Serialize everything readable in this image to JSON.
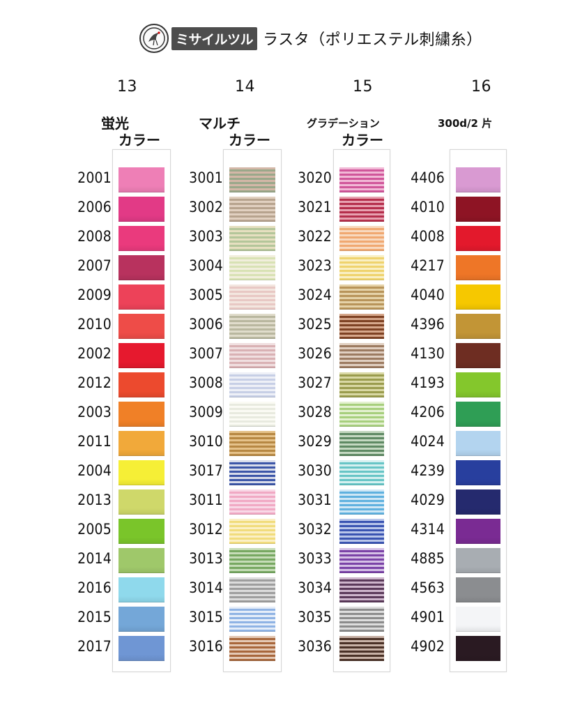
{
  "header": {
    "brand": "ミサイルツル",
    "title": "ラスタ（ポリエステル刺繍糸）",
    "logo_icon": "crane-emblem-icon"
  },
  "columns": [
    {
      "number": "13",
      "label_lines": [
        "蛍光",
        "カラー"
      ],
      "style": "solid",
      "items": [
        {
          "code": "2001",
          "color": "#ee7fb6"
        },
        {
          "code": "2006",
          "color": "#e23a86"
        },
        {
          "code": "2008",
          "color": "#ea3a7d"
        },
        {
          "code": "2007",
          "color": "#b8325e"
        },
        {
          "code": "2009",
          "color": "#ed4259"
        },
        {
          "code": "2010",
          "color": "#ee4c48"
        },
        {
          "code": "2002",
          "color": "#e6192e"
        },
        {
          "code": "2012",
          "color": "#ec4a2e"
        },
        {
          "code": "2003",
          "color": "#f08027"
        },
        {
          "code": "2011",
          "color": "#f1a93a"
        },
        {
          "code": "2004",
          "color": "#f6ef36"
        },
        {
          "code": "2013",
          "color": "#cfd86a"
        },
        {
          "code": "2005",
          "color": "#7ac52a"
        },
        {
          "code": "2014",
          "color": "#9fc86a"
        },
        {
          "code": "2016",
          "color": "#8fd9ec"
        },
        {
          "code": "2015",
          "color": "#74a7d8"
        },
        {
          "code": "2017",
          "color": "#6f96d4"
        }
      ]
    },
    {
      "number": "14",
      "label_lines": [
        "マルチ",
        "カラー"
      ],
      "style": "multi",
      "items": [
        {
          "code": "3001",
          "color": "#9aa88a",
          "color2": "#d3b7a7"
        },
        {
          "code": "3002",
          "color": "#b7a38e",
          "color2": "#e1d0c0"
        },
        {
          "code": "3003",
          "color": "#b4c69a",
          "color2": "#e6dfc0"
        },
        {
          "code": "3004",
          "color": "#d8e2b4",
          "color2": "#f1eedc"
        },
        {
          "code": "3005",
          "color": "#e8c8c4",
          "color2": "#f3e6df"
        },
        {
          "code": "3006",
          "color": "#b9b79f",
          "color2": "#e0dccb"
        },
        {
          "code": "3007",
          "color": "#d9b1b4",
          "color2": "#f0dfe0"
        },
        {
          "code": "3008",
          "color": "#c7cfe6",
          "color2": "#eef0f7"
        },
        {
          "code": "3009",
          "color": "#e8eadf",
          "color2": "#fbfbf4"
        },
        {
          "code": "3010",
          "color": "#b78843",
          "color2": "#e5c28a"
        },
        {
          "code": "3017",
          "color": "#3c56a8",
          "color2": "#d8dcea"
        },
        {
          "code": "3011",
          "color": "#f1a9c4",
          "color2": "#f8d8e6"
        },
        {
          "code": "3012",
          "color": "#f1dc7c",
          "color2": "#fbf0c6"
        },
        {
          "code": "3013",
          "color": "#77a862",
          "color2": "#c6dcb8"
        },
        {
          "code": "3014",
          "color": "#9e9e9e",
          "color2": "#dcdcdc"
        },
        {
          "code": "3015",
          "color": "#8fb3e4",
          "color2": "#e6eef9"
        },
        {
          "code": "3016",
          "color": "#a8673c",
          "color2": "#e4c9b5"
        }
      ]
    },
    {
      "number": "15",
      "label_lines": [
        "グラデーション",
        "カラー"
      ],
      "style": "multi",
      "items": [
        {
          "code": "3020",
          "color": "#d0569a",
          "color2": "#f1b8d6"
        },
        {
          "code": "3021",
          "color": "#b52e4c",
          "color2": "#e7a1b0"
        },
        {
          "code": "3022",
          "color": "#f0a871",
          "color2": "#f8d9bf"
        },
        {
          "code": "3023",
          "color": "#efd36e",
          "color2": "#f9efc4"
        },
        {
          "code": "3024",
          "color": "#b8945a",
          "color2": "#e5d2a8"
        },
        {
          "code": "3025",
          "color": "#7e4224",
          "color2": "#d6a78b"
        },
        {
          "code": "3026",
          "color": "#9c7b61",
          "color2": "#e0cfc1"
        },
        {
          "code": "3027",
          "color": "#9a9c4e",
          "color2": "#d9d8a4"
        },
        {
          "code": "3028",
          "color": "#a7cf7d",
          "color2": "#e4f1d1"
        },
        {
          "code": "3029",
          "color": "#5f8a64",
          "color2": "#c4d8c1"
        },
        {
          "code": "3030",
          "color": "#67c5c6",
          "color2": "#d5f0f0"
        },
        {
          "code": "3031",
          "color": "#5fb1df",
          "color2": "#cfe7f5"
        },
        {
          "code": "3032",
          "color": "#3a54b2",
          "color2": "#b9c6ea"
        },
        {
          "code": "3033",
          "color": "#7b43a7",
          "color2": "#d5c1e6"
        },
        {
          "code": "3034",
          "color": "#5b3a5a",
          "color2": "#cdb5cb"
        },
        {
          "code": "3035",
          "color": "#8c8c8c",
          "color2": "#dddddd"
        },
        {
          "code": "3036",
          "color": "#4a3126",
          "color2": "#c8b2a6"
        }
      ]
    },
    {
      "number": "16",
      "label_lines": [
        "300d/2 片"
      ],
      "style": "solid",
      "items": [
        {
          "code": "4406",
          "color": "#d99ad2"
        },
        {
          "code": "4010",
          "color": "#8e1424"
        },
        {
          "code": "4008",
          "color": "#e3192c"
        },
        {
          "code": "4217",
          "color": "#ee7627"
        },
        {
          "code": "4040",
          "color": "#f6c800"
        },
        {
          "code": "4396",
          "color": "#c29536"
        },
        {
          "code": "4130",
          "color": "#6e2d22"
        },
        {
          "code": "4193",
          "color": "#84c72c"
        },
        {
          "code": "4206",
          "color": "#2f9e55"
        },
        {
          "code": "4024",
          "color": "#b3d4ef"
        },
        {
          "code": "4239",
          "color": "#283f9e"
        },
        {
          "code": "4029",
          "color": "#252a6e"
        },
        {
          "code": "4314",
          "color": "#7a2b93"
        },
        {
          "code": "4885",
          "color": "#a8adb2"
        },
        {
          "code": "4563",
          "color": "#8b8d90"
        },
        {
          "code": "4901",
          "color": "#f4f5f7"
        },
        {
          "code": "4902",
          "color": "#2a1a22"
        }
      ]
    }
  ]
}
